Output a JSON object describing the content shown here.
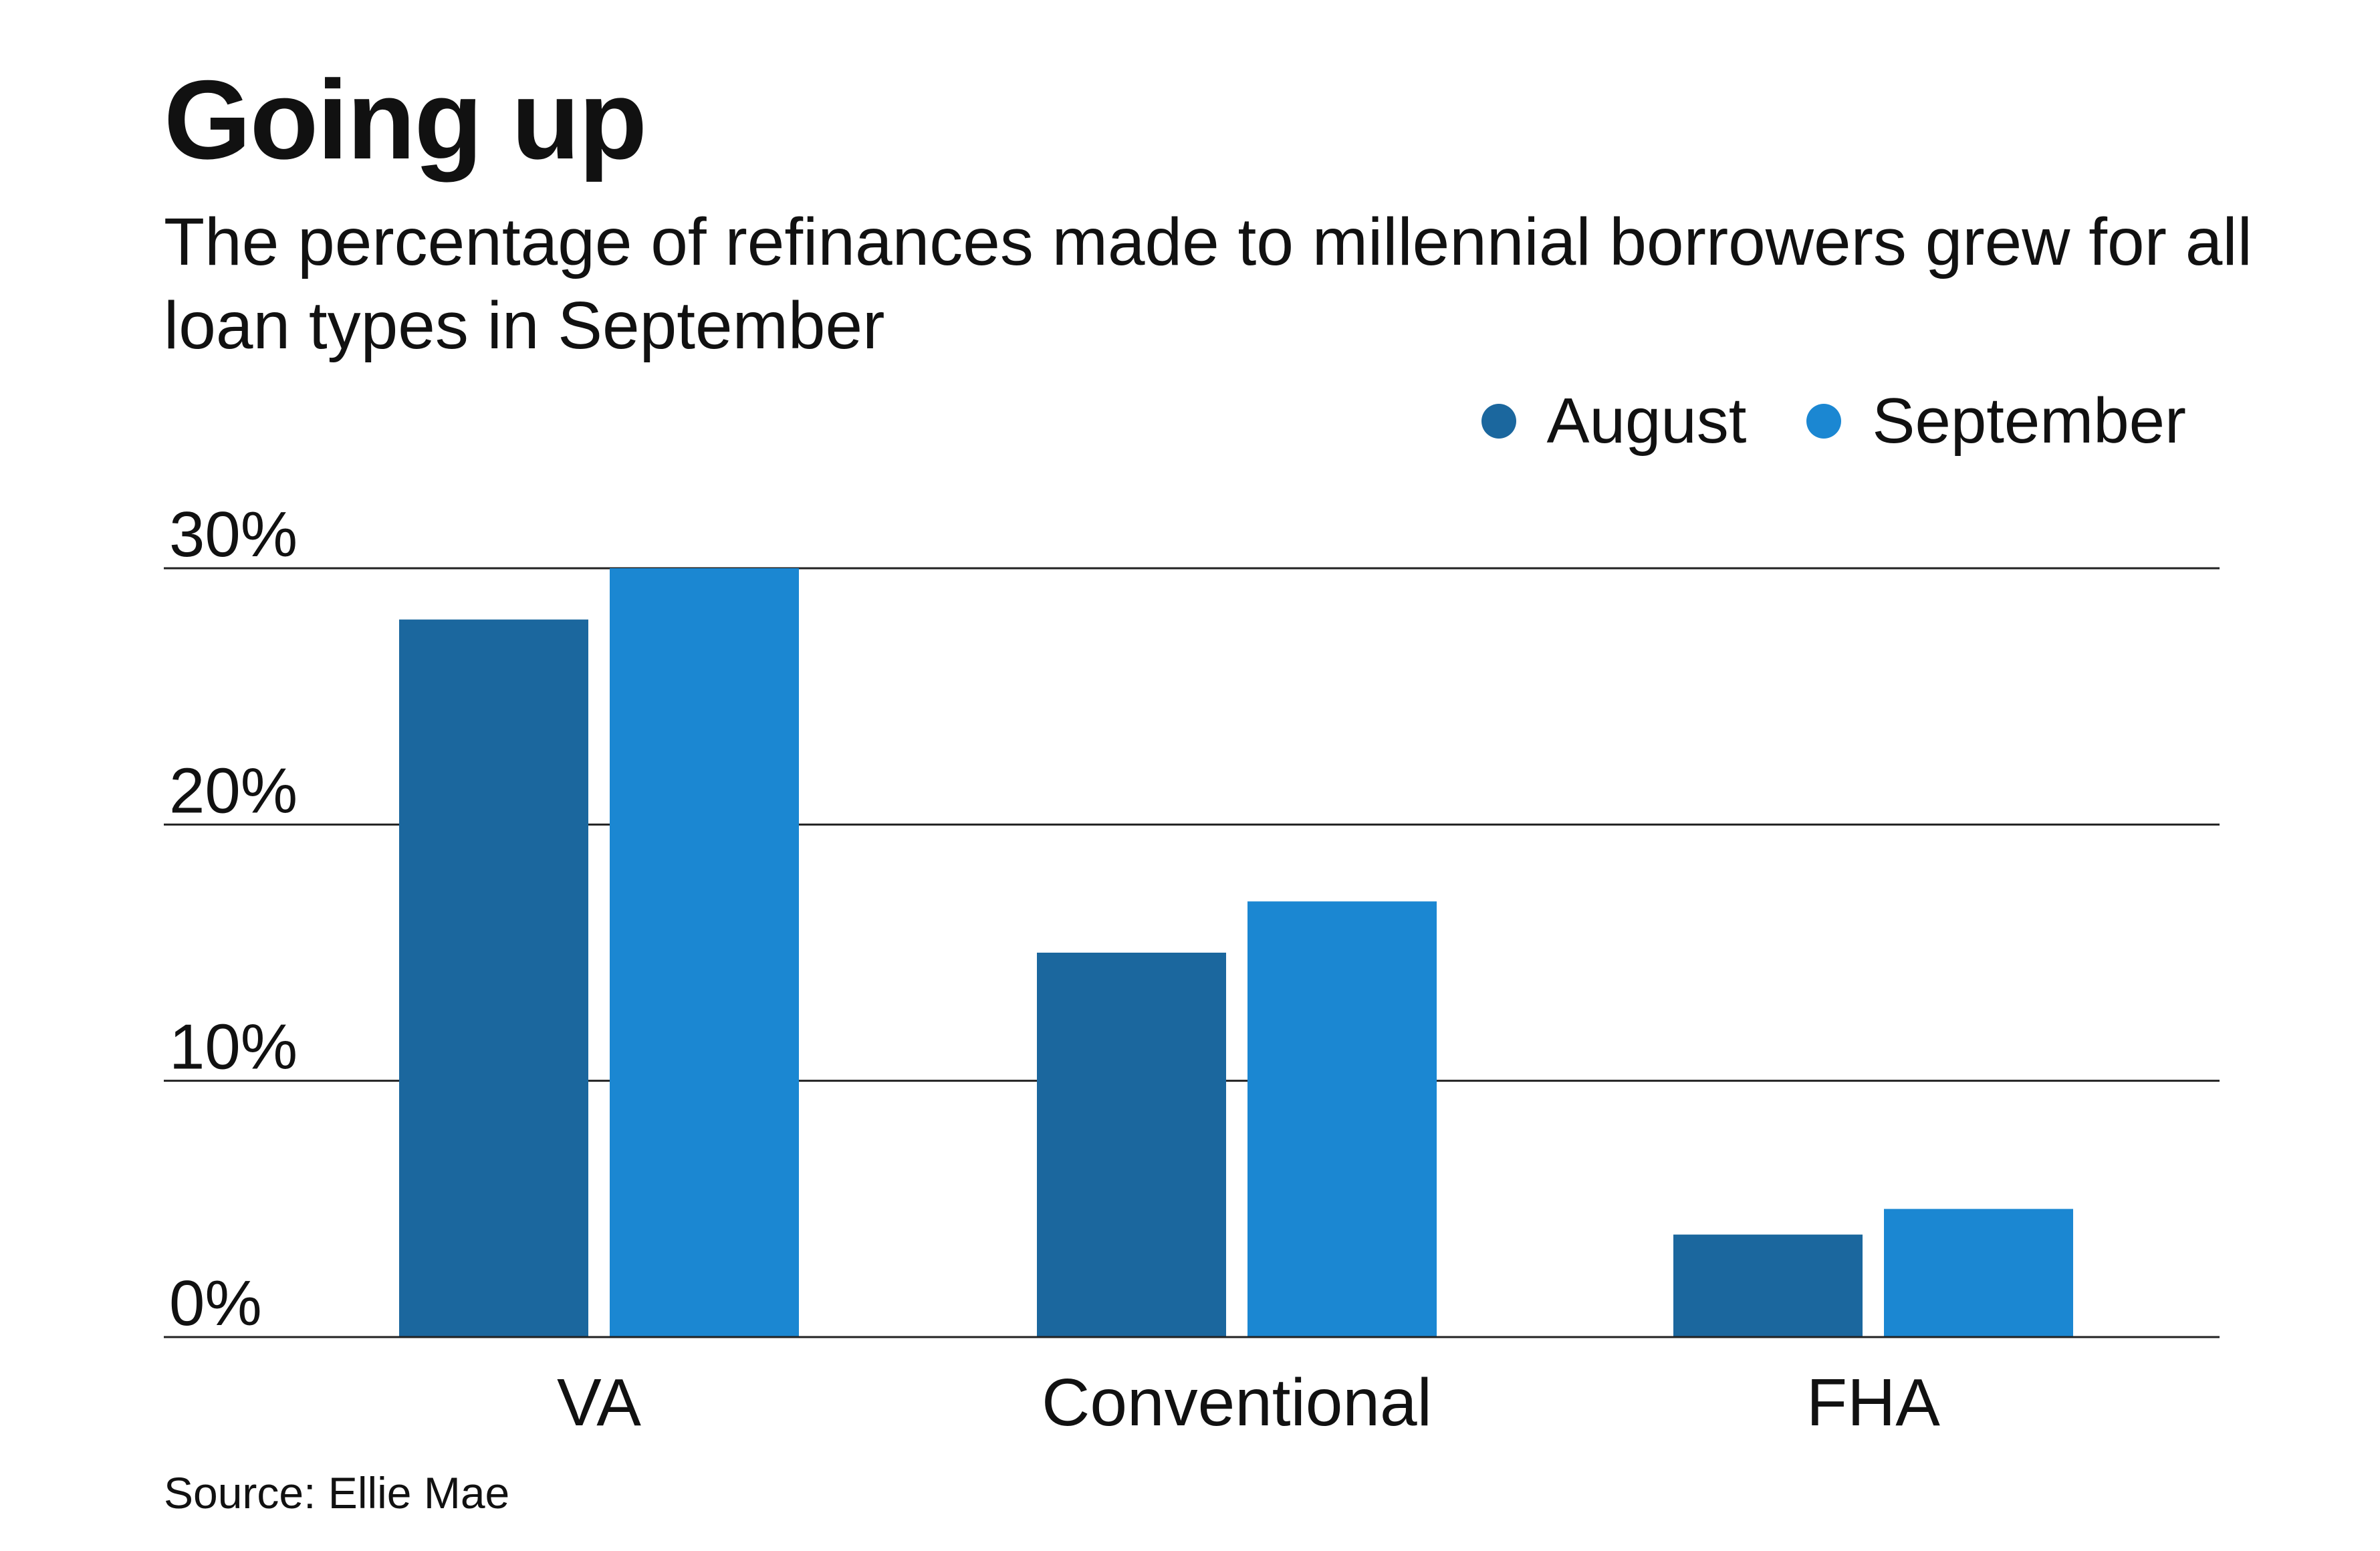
{
  "title": "Going up",
  "subtitle": "The percentage of refinances made to millennial borrowers grew for all loan types in September",
  "source": "Source: Ellie Mae",
  "colors": {
    "august": "#1b679e",
    "september": "#1b87d2",
    "gridline": "#222222",
    "text": "#111111"
  },
  "chart_data": {
    "type": "bar",
    "categories": [
      "VA",
      "Conventional",
      "FHA"
    ],
    "series": [
      {
        "name": "August",
        "values": [
          28,
          15,
          4
        ]
      },
      {
        "name": "September",
        "values": [
          30,
          17,
          5
        ]
      }
    ],
    "ylim": [
      0,
      30
    ],
    "yticks": [
      0,
      10,
      20,
      30
    ],
    "ytick_labels": [
      "0%",
      "10%",
      "20%",
      "30%"
    ],
    "xlabel": "",
    "ylabel": "",
    "grid": true,
    "legend_position": "top-right"
  }
}
